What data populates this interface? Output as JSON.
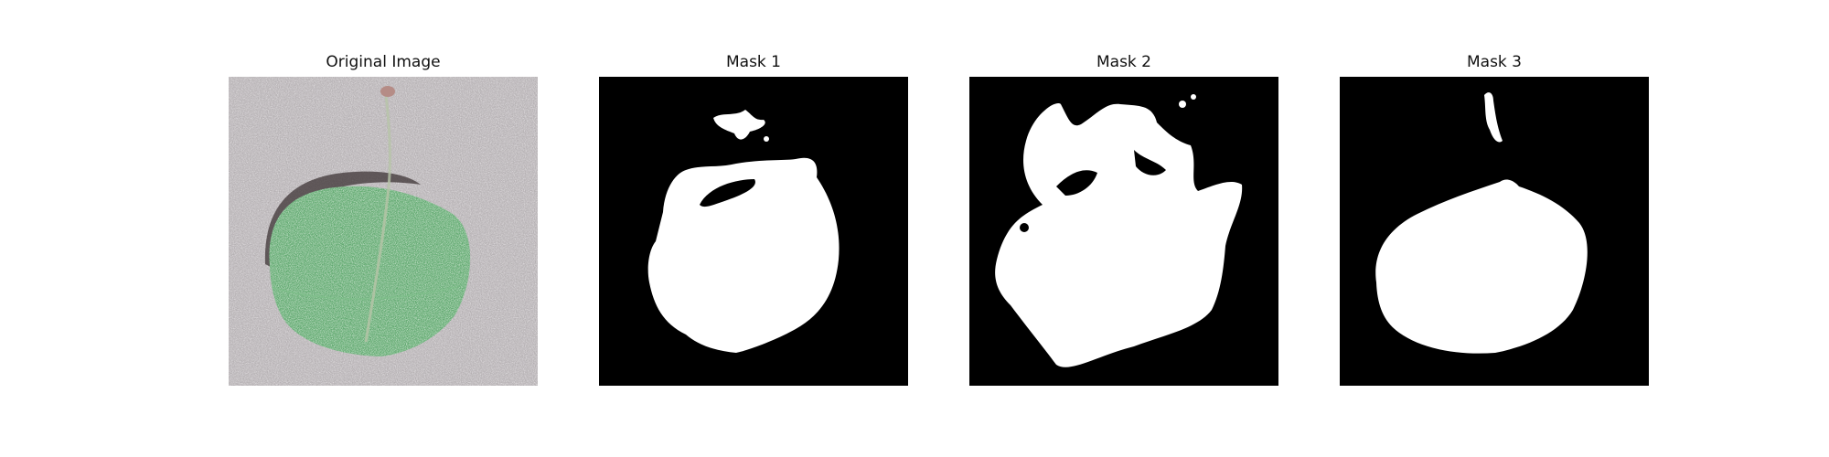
{
  "figure": {
    "panels": [
      {
        "title": "Original Image",
        "kind": "photo"
      },
      {
        "title": "Mask 1",
        "kind": "mask"
      },
      {
        "title": "Mask 2",
        "kind": "mask"
      },
      {
        "title": "Mask 3",
        "kind": "mask"
      }
    ],
    "colors": {
      "mask_background": "#000000",
      "mask_foreground": "#ffffff",
      "leaf_green": "#5fa86e",
      "photo_background": "#a9a4a6"
    }
  }
}
